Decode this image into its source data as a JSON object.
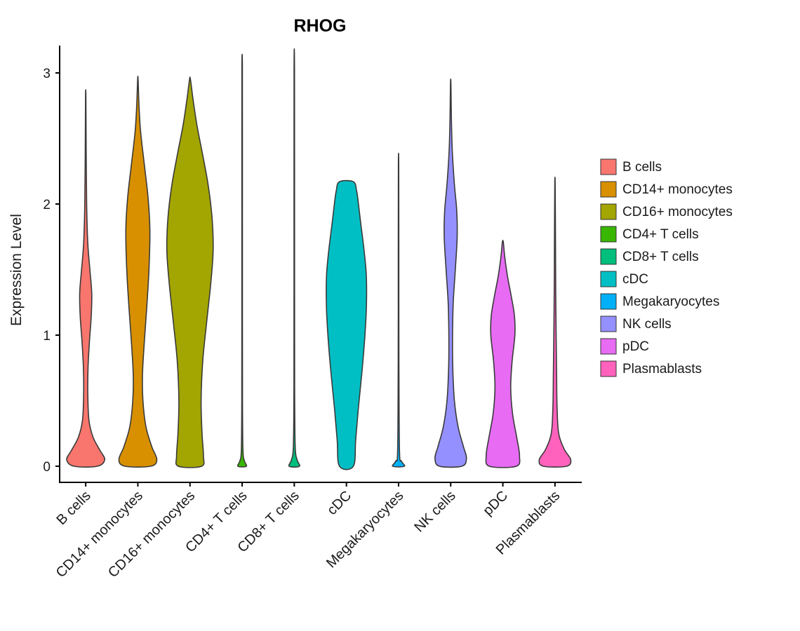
{
  "chart_data": {
    "type": "violin",
    "title": "RHOG",
    "ylabel": "Expression Level",
    "xlabel": "",
    "ylim": [
      0,
      3.2
    ],
    "yticks": [
      0,
      1,
      2,
      3
    ],
    "grid": false,
    "legend_position": "right",
    "outline_color": "#3a3a3a",
    "axis_color": "#000000",
    "categories": [
      "B cells",
      "CD14+ monocytes",
      "CD16+ monocytes",
      "CD4+ T cells",
      "CD8+ T cells",
      "cDC",
      "Megakaryocytes",
      "NK cells",
      "pDC",
      "Plasmablasts"
    ],
    "series": [
      {
        "name": "B cells",
        "color": "#F8766D",
        "max_expression": 2.82,
        "profile": [
          [
            0,
            0.5
          ],
          [
            0.05,
            0.82
          ],
          [
            0.12,
            0.62
          ],
          [
            0.22,
            0.32
          ],
          [
            0.35,
            0.14
          ],
          [
            0.55,
            0.09
          ],
          [
            0.75,
            0.1
          ],
          [
            0.95,
            0.16
          ],
          [
            1.15,
            0.24
          ],
          [
            1.32,
            0.26
          ],
          [
            1.5,
            0.18
          ],
          [
            1.7,
            0.09
          ],
          [
            2.0,
            0.04
          ],
          [
            2.4,
            0.02
          ],
          [
            2.82,
            0.008
          ]
        ]
      },
      {
        "name": "CD14+ monocytes",
        "color": "#D89000",
        "max_expression": 2.95,
        "profile": [
          [
            0,
            0.55
          ],
          [
            0.05,
            0.82
          ],
          [
            0.15,
            0.6
          ],
          [
            0.3,
            0.35
          ],
          [
            0.5,
            0.22
          ],
          [
            0.7,
            0.2
          ],
          [
            0.95,
            0.28
          ],
          [
            1.2,
            0.38
          ],
          [
            1.5,
            0.48
          ],
          [
            1.8,
            0.52
          ],
          [
            2.05,
            0.44
          ],
          [
            2.3,
            0.28
          ],
          [
            2.55,
            0.12
          ],
          [
            2.75,
            0.05
          ],
          [
            2.95,
            0.01
          ]
        ]
      },
      {
        "name": "CD16+ monocytes",
        "color": "#A3A500",
        "max_expression": 2.95,
        "profile": [
          [
            0,
            0.5
          ],
          [
            0.08,
            0.58
          ],
          [
            0.25,
            0.52
          ],
          [
            0.5,
            0.48
          ],
          [
            0.8,
            0.55
          ],
          [
            1.1,
            0.72
          ],
          [
            1.4,
            0.9
          ],
          [
            1.65,
            1.0
          ],
          [
            1.9,
            0.95
          ],
          [
            2.15,
            0.78
          ],
          [
            2.4,
            0.52
          ],
          [
            2.6,
            0.3
          ],
          [
            2.8,
            0.13
          ],
          [
            2.95,
            0.02
          ]
        ]
      },
      {
        "name": "CD4+ T cells",
        "color": "#39B600",
        "max_expression": 3.07,
        "profile": [
          [
            0,
            0.18
          ],
          [
            0.04,
            0.1
          ],
          [
            0.12,
            0.035
          ],
          [
            0.5,
            0.015
          ],
          [
            1.5,
            0.012
          ],
          [
            2.5,
            0.012
          ],
          [
            3.07,
            0.01
          ]
        ]
      },
      {
        "name": "CD8+ T cells",
        "color": "#00BF7D",
        "max_expression": 3.03,
        "profile": [
          [
            0,
            0.22
          ],
          [
            0.05,
            0.12
          ],
          [
            0.15,
            0.04
          ],
          [
            0.6,
            0.015
          ],
          [
            1.8,
            0.012
          ],
          [
            3.03,
            0.01
          ]
        ]
      },
      {
        "name": "cDC",
        "color": "#00BFC4",
        "max_expression": 2.17,
        "profile": [
          [
            0,
            0.3
          ],
          [
            0.2,
            0.4
          ],
          [
            0.45,
            0.52
          ],
          [
            0.7,
            0.66
          ],
          [
            0.95,
            0.78
          ],
          [
            1.2,
            0.86
          ],
          [
            1.45,
            0.86
          ],
          [
            1.65,
            0.76
          ],
          [
            1.85,
            0.62
          ],
          [
            2.0,
            0.52
          ],
          [
            2.1,
            0.44
          ],
          [
            2.17,
            0.3
          ]
        ]
      },
      {
        "name": "Megakaryocytes",
        "color": "#00B0F6",
        "max_expression": 2.3,
        "profile": [
          [
            0,
            0.25
          ],
          [
            0.04,
            0.12
          ],
          [
            0.12,
            0.04
          ],
          [
            0.8,
            0.015
          ],
          [
            1.6,
            0.012
          ],
          [
            2.3,
            0.008
          ]
        ]
      },
      {
        "name": "NK cells",
        "color": "#9590FF",
        "max_expression": 2.92,
        "profile": [
          [
            0,
            0.48
          ],
          [
            0.06,
            0.68
          ],
          [
            0.15,
            0.55
          ],
          [
            0.3,
            0.32
          ],
          [
            0.5,
            0.16
          ],
          [
            0.75,
            0.09
          ],
          [
            1.0,
            0.08
          ],
          [
            1.25,
            0.11
          ],
          [
            1.5,
            0.2
          ],
          [
            1.75,
            0.28
          ],
          [
            1.95,
            0.26
          ],
          [
            2.15,
            0.16
          ],
          [
            2.4,
            0.07
          ],
          [
            2.65,
            0.03
          ],
          [
            2.92,
            0.01
          ]
        ]
      },
      {
        "name": "pDC",
        "color": "#E76BF3",
        "max_expression": 1.71,
        "profile": [
          [
            0,
            0.58
          ],
          [
            0.08,
            0.72
          ],
          [
            0.22,
            0.6
          ],
          [
            0.4,
            0.42
          ],
          [
            0.6,
            0.34
          ],
          [
            0.8,
            0.4
          ],
          [
            1.0,
            0.52
          ],
          [
            1.15,
            0.5
          ],
          [
            1.3,
            0.36
          ],
          [
            1.45,
            0.2
          ],
          [
            1.6,
            0.08
          ],
          [
            1.71,
            0.02
          ]
        ]
      },
      {
        "name": "Plasmablasts",
        "color": "#FF62BC",
        "max_expression": 2.16,
        "profile": [
          [
            0,
            0.5
          ],
          [
            0.05,
            0.68
          ],
          [
            0.13,
            0.4
          ],
          [
            0.25,
            0.16
          ],
          [
            0.45,
            0.09
          ],
          [
            0.7,
            0.07
          ],
          [
            1.0,
            0.05
          ],
          [
            1.4,
            0.03
          ],
          [
            1.8,
            0.02
          ],
          [
            2.16,
            0.008
          ]
        ]
      }
    ]
  }
}
